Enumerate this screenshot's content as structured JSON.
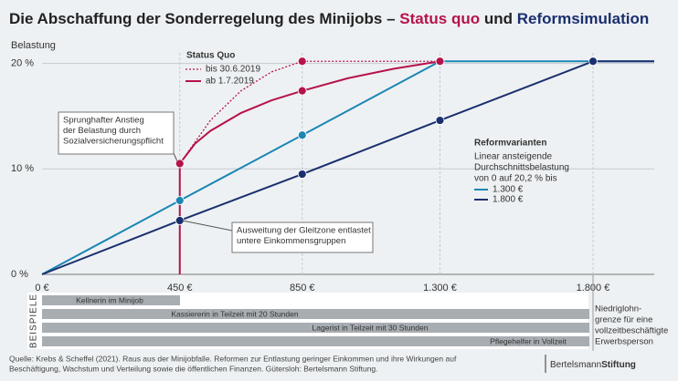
{
  "chart_data": {
    "type": "line",
    "title_parts": [
      "Die Abschaffung der Sonderregelung des Minijobs – ",
      "Status quo",
      " und ",
      "Reformsimulation"
    ],
    "title_colors": [
      "#222222",
      "#b5134b",
      "#222222",
      "#1a2f6e"
    ],
    "y_label": "Belastung",
    "xlim": [
      0,
      2000
    ],
    "ylim": [
      0,
      21
    ],
    "xticks": [
      {
        "value": 0,
        "label": "0 €"
      },
      {
        "value": 450,
        "label": "450 €"
      },
      {
        "value": 850,
        "label": "850 €"
      },
      {
        "value": 1300,
        "label": "1.300 €"
      },
      {
        "value": 1800,
        "label": "1.800 €"
      }
    ],
    "yticks": [
      {
        "value": 0,
        "label": "0 %"
      },
      {
        "value": 10,
        "label": "10 %"
      },
      {
        "value": 20,
        "label": "20 %"
      }
    ],
    "grid": true,
    "series": [
      {
        "name": "1.300 €",
        "color": "#1b86b4",
        "x": [
          0,
          450,
          850,
          1300,
          2000
        ],
        "values": [
          0,
          7.0,
          13.2,
          20.2,
          20.2
        ]
      },
      {
        "name": "1.800 €",
        "color": "#1a2f6e",
        "x": [
          0,
          450,
          850,
          1300,
          1800,
          2000
        ],
        "values": [
          0,
          5.1,
          9.5,
          14.6,
          20.2,
          20.2
        ]
      },
      {
        "name": "bis 30.6.2019",
        "color": "#b5134b",
        "dashed": true,
        "x": [
          450,
          550,
          650,
          750,
          850,
          1300
        ],
        "values": [
          10.5,
          14.6,
          17.4,
          19.2,
          20.2,
          20.2
        ]
      },
      {
        "name": "ab 1.7.2019",
        "color": "#b5134b",
        "x": [
          450,
          450,
          500,
          550,
          650,
          750,
          850,
          1000,
          1150,
          1300
        ],
        "values": [
          0,
          10.5,
          12.4,
          13.6,
          15.3,
          16.5,
          17.4,
          18.6,
          19.5,
          20.2
        ]
      }
    ],
    "status_quo_title": "Status Quo",
    "reform_title": "Reformvarianten",
    "reform_desc": [
      "Linear ansteigende",
      "Durchschnittsbelastung",
      "von 0 auf 20,2 % bis"
    ],
    "annotations": [
      [
        "Sprunghafter Anstieg",
        "der Belastung durch",
        "Sozialversicherungspflicht"
      ],
      [
        "Ausweitung der Gleitzone entlastet",
        "untere Einkommensgruppen"
      ]
    ],
    "examples_label": "BEISPIELE",
    "examples": [
      "Kellnerin im Minijob",
      "Kassiererin in Teilzeit mit 20 Stunden",
      "Lagerist in Teilzeit mit 30 Stunden",
      "Pflegehelfer in Vollzeit"
    ],
    "threshold_note": [
      "Niedriglohn-",
      "grenze für eine",
      "vollzeitbeschäftigte",
      "Erwerbsperson"
    ],
    "source": [
      "Quelle: Krebs & Scheffel (2021). Raus aus der Minijobfalle. Reformen zur Entlastung geringer Einkommen und ihre Wirkungen auf",
      "Beschäftigung, Wachstum und Verteilung sowie die öffentlichen Finanzen. Gütersloh: Bertelsmann Stiftung."
    ],
    "logo": [
      "Bertelsmann",
      "Stiftung"
    ]
  }
}
